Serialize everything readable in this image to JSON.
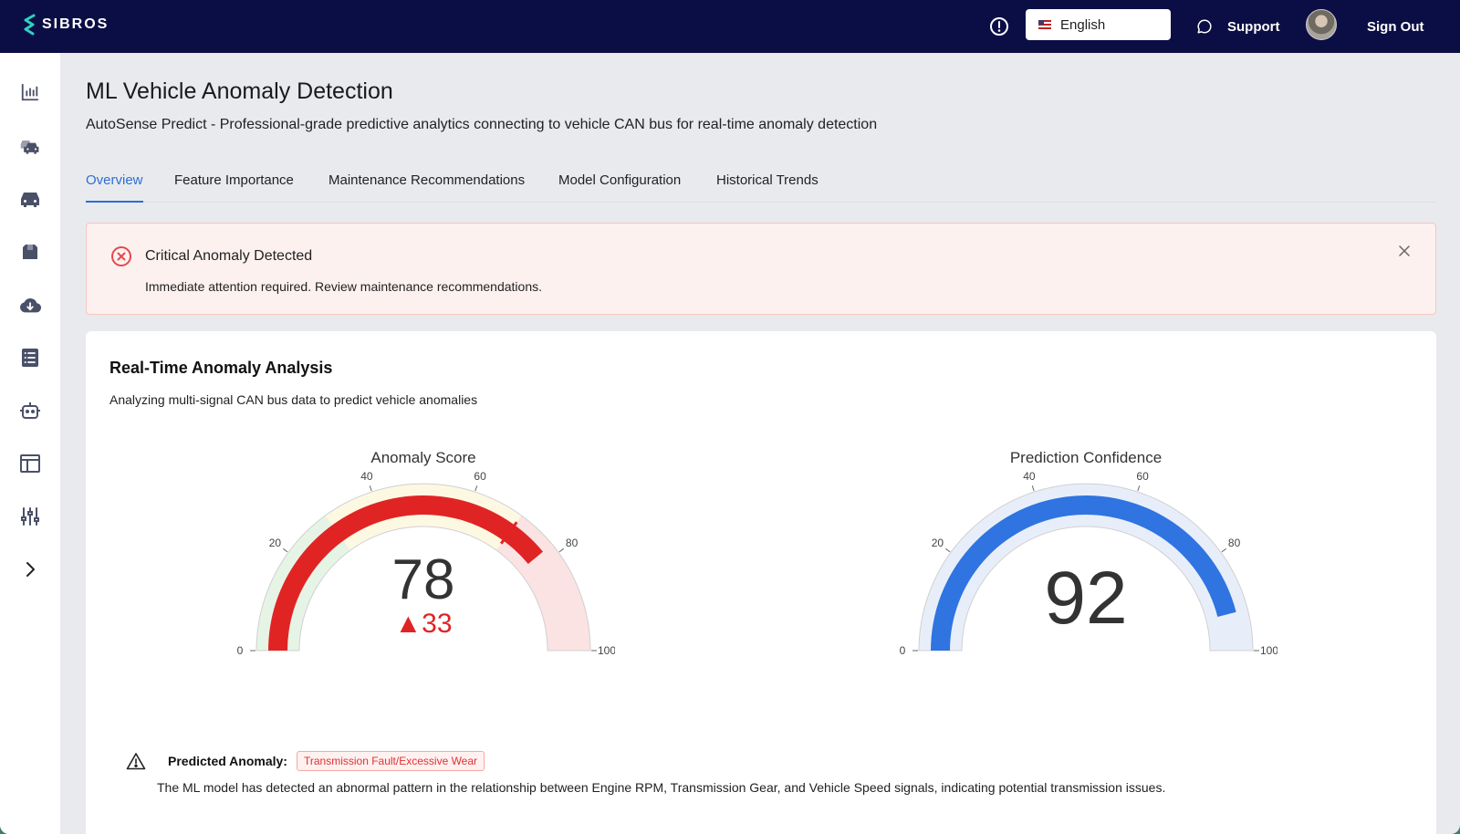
{
  "topbar": {
    "brand": "SIBROS",
    "language": "English",
    "support_label": "Support",
    "signout_label": "Sign Out"
  },
  "sidebar": {
    "items": [
      {
        "icon": "analytics-icon"
      },
      {
        "icon": "fleet-icon"
      },
      {
        "icon": "vehicle-icon"
      },
      {
        "icon": "package-icon"
      },
      {
        "icon": "cloud-download-icon"
      },
      {
        "icon": "checklist-icon"
      },
      {
        "icon": "robot-icon"
      },
      {
        "icon": "layout-icon"
      },
      {
        "icon": "sliders-icon"
      },
      {
        "icon": "chevron-right-icon"
      }
    ]
  },
  "page": {
    "title": "ML Vehicle Anomaly Detection",
    "subtitle": "AutoSense Predict - Professional-grade predictive analytics connecting to vehicle CAN bus for real-time anomaly detection"
  },
  "tabs": [
    {
      "label": "Overview",
      "active": true
    },
    {
      "label": "Feature Importance",
      "active": false
    },
    {
      "label": "Maintenance Recommendations",
      "active": false
    },
    {
      "label": "Model Configuration",
      "active": false
    },
    {
      "label": "Historical Trends",
      "active": false
    }
  ],
  "alert": {
    "title": "Critical Anomaly Detected",
    "message": "Immediate attention required. Review maintenance recommendations."
  },
  "analysis": {
    "title": "Real-Time Anomaly Analysis",
    "subtitle": "Analyzing multi-signal CAN bus data to predict vehicle anomalies",
    "prediction_label": "Predicted Anomaly:",
    "prediction_value": "Transmission Fault/Excessive Wear",
    "prediction_description": "The ML model has detected an abnormal pattern in the relationship between Engine RPM, Transmission Gear, and Vehicle Speed signals, indicating potential transmission issues."
  },
  "chart_data": [
    {
      "type": "gauge",
      "title": "Anomaly Score",
      "value": 78,
      "delta": "▲33",
      "range": [
        0,
        100
      ],
      "ticks": [
        0,
        20,
        40,
        60,
        80,
        100
      ],
      "threshold": 70,
      "bar_color": "#e02424",
      "steps": [
        {
          "range": [
            0,
            30
          ],
          "color": "#e6f4e6"
        },
        {
          "range": [
            30,
            70
          ],
          "color": "#fdf8e2"
        },
        {
          "range": [
            70,
            100
          ],
          "color": "#fbe3e3"
        }
      ]
    },
    {
      "type": "gauge",
      "title": "Prediction Confidence",
      "value": 92,
      "range": [
        0,
        100
      ],
      "ticks": [
        0,
        20,
        40,
        60,
        80,
        100
      ],
      "bar_color": "#2f74e0",
      "steps": [
        {
          "range": [
            0,
            100
          ],
          "color": "#e8eef9"
        }
      ]
    }
  ]
}
